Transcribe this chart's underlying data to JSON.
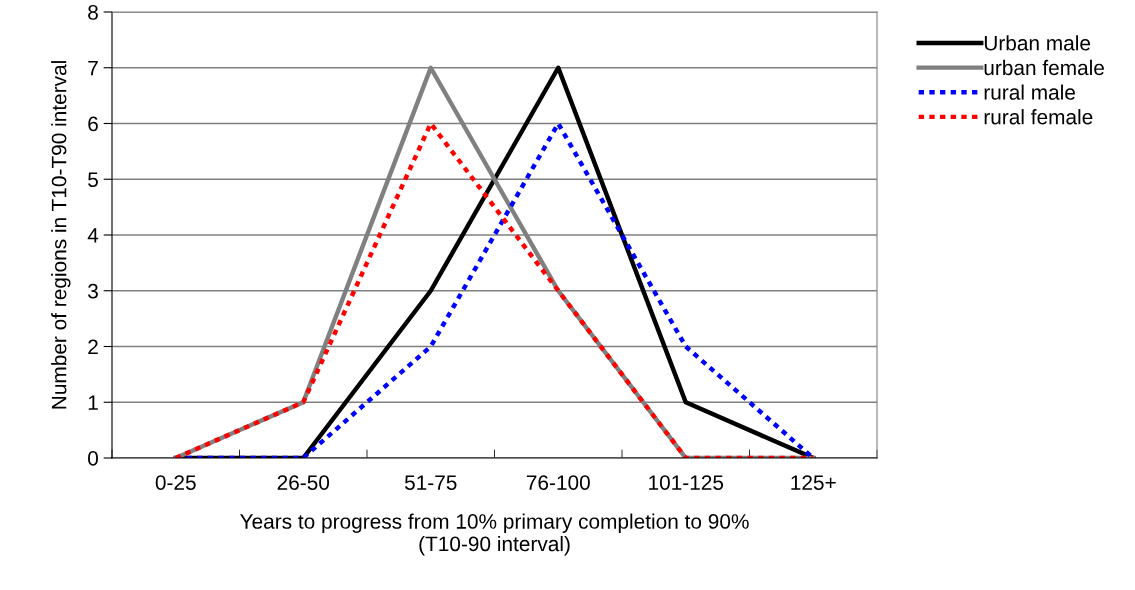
{
  "chart_data": {
    "type": "line",
    "xlabel": "Years to progress from 10% primary completion to 90%\n(T10-90 interval)",
    "ylabel": "Number of regions in T10-T90 interval",
    "categories": [
      "0-25",
      "26-50",
      "51-75",
      "76-100",
      "101-125",
      "125+"
    ],
    "series": [
      {
        "name": "Urban male",
        "color": "#000000",
        "line_style": "solid",
        "values": [
          0,
          0,
          3,
          7,
          1,
          0
        ]
      },
      {
        "name": "urban female",
        "color": "#808080",
        "line_style": "solid",
        "values": [
          0,
          1,
          7,
          3,
          0,
          0
        ]
      },
      {
        "name": "rural male",
        "color": "#0000ff",
        "line_style": "dotted",
        "values": [
          0,
          0,
          2,
          6,
          2,
          0
        ]
      },
      {
        "name": "rural female",
        "color": "#ff0000",
        "line_style": "dotted",
        "values": [
          0,
          1,
          6,
          3,
          0,
          0
        ]
      }
    ],
    "ylim": [
      0,
      8
    ],
    "yticks": [
      0,
      1,
      2,
      3,
      4,
      5,
      6,
      7,
      8
    ],
    "grid": "y",
    "legend": "top right",
    "marker": "none"
  }
}
